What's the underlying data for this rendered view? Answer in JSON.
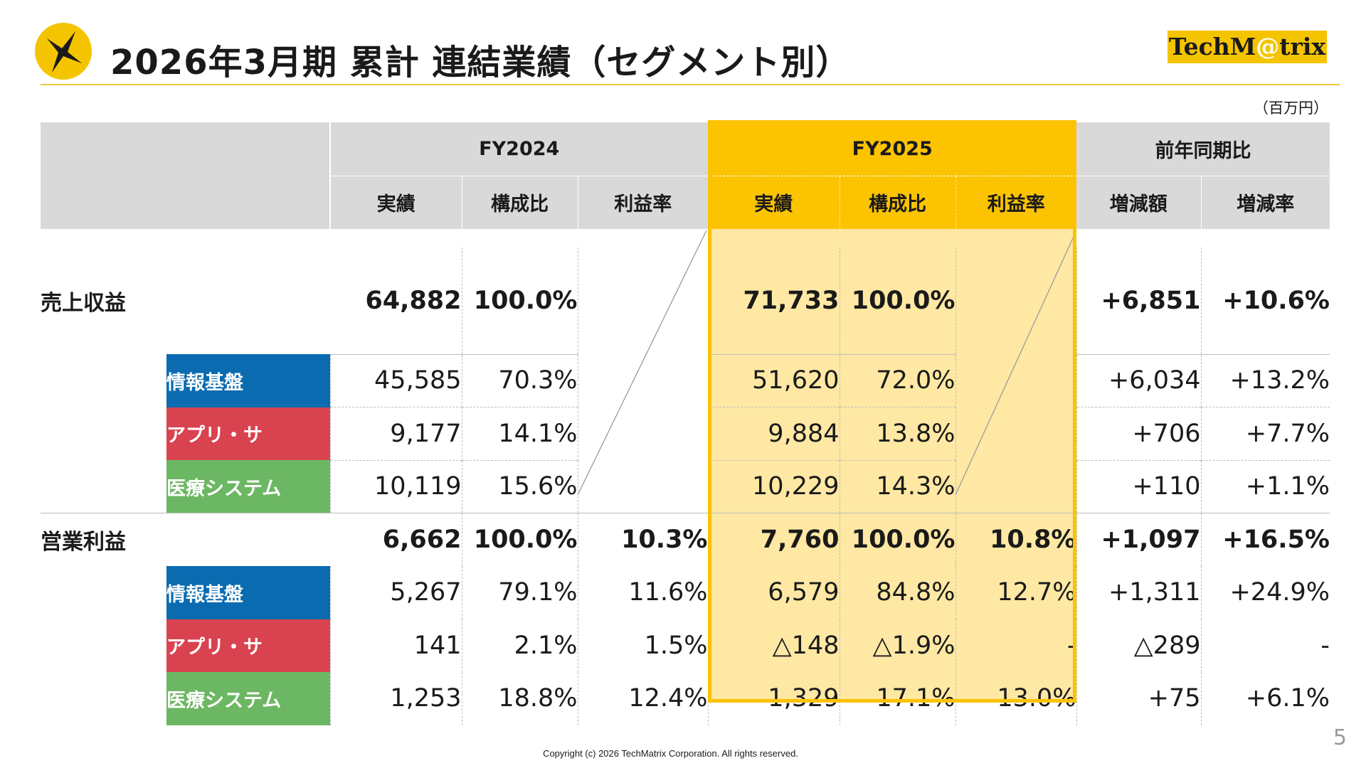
{
  "header": {
    "title": "2026年3月期 累計 連結業績（セグメント別）",
    "brand_pre": "TechM",
    "brand_at": "@",
    "brand_post": "trix",
    "unit": "（百万円）"
  },
  "colors": {
    "accent_yellow": "#fcc300",
    "highlight_fill": "#ffe8a4",
    "header_gray": "#d9d9d9",
    "segment_info": "#0a6bb1",
    "segment_app": "#d9434f",
    "segment_medical": "#6cb763"
  },
  "table": {
    "groups": {
      "fy2024": "FY2024",
      "fy2025": "FY2025",
      "yoy": "前年同期比"
    },
    "columns": {
      "actual": "実績",
      "composition": "構成比",
      "margin": "利益率",
      "change_amount": "増減額",
      "change_rate": "増減率"
    },
    "revenue": {
      "label": "売上収益",
      "total": {
        "fy24_actual": "64,882",
        "fy24_comp": "100.0%",
        "fy25_actual": "71,733",
        "fy25_comp": "100.0%",
        "change": "+6,851",
        "rate": "+10.6%"
      },
      "info": {
        "label": "情報基盤",
        "fy24_actual": "45,585",
        "fy24_comp": "70.3%",
        "fy25_actual": "51,620",
        "fy25_comp": "72.0%",
        "change": "+6,034",
        "rate": "+13.2%"
      },
      "app": {
        "label": "アプリ・サ",
        "fy24_actual": "9,177",
        "fy24_comp": "14.1%",
        "fy25_actual": "9,884",
        "fy25_comp": "13.8%",
        "change": "+706",
        "rate": "+7.7%"
      },
      "medical": {
        "label": "医療システム",
        "fy24_actual": "10,119",
        "fy24_comp": "15.6%",
        "fy25_actual": "10,229",
        "fy25_comp": "14.3%",
        "change": "+110",
        "rate": "+1.1%"
      }
    },
    "op_income": {
      "label": "営業利益",
      "total": {
        "fy24_actual": "6,662",
        "fy24_comp": "100.0%",
        "fy24_margin": "10.3%",
        "fy25_actual": "7,760",
        "fy25_comp": "100.0%",
        "fy25_margin": "10.8%",
        "change": "+1,097",
        "rate": "+16.5%"
      },
      "info": {
        "label": "情報基盤",
        "fy24_actual": "5,267",
        "fy24_comp": "79.1%",
        "fy24_margin": "11.6%",
        "fy25_actual": "6,579",
        "fy25_comp": "84.8%",
        "fy25_margin": "12.7%",
        "change": "+1,311",
        "rate": "+24.9%"
      },
      "app": {
        "label": "アプリ・サ",
        "fy24_actual": "141",
        "fy24_comp": "2.1%",
        "fy24_margin": "1.5%",
        "fy25_actual": "△148",
        "fy25_comp": "△1.9%",
        "fy25_margin": "-",
        "change": "△289",
        "rate": "-"
      },
      "medical": {
        "label": "医療システム",
        "fy24_actual": "1,253",
        "fy24_comp": "18.8%",
        "fy24_margin": "12.4%",
        "fy25_actual": "1,329",
        "fy25_comp": "17.1%",
        "fy25_margin": "13.0%",
        "change": "+75",
        "rate": "+6.1%"
      }
    }
  },
  "footer": {
    "copyright": "Copyright (c) 2026 TechMatrix Corporation. All rights reserved.",
    "page_number": "5"
  }
}
